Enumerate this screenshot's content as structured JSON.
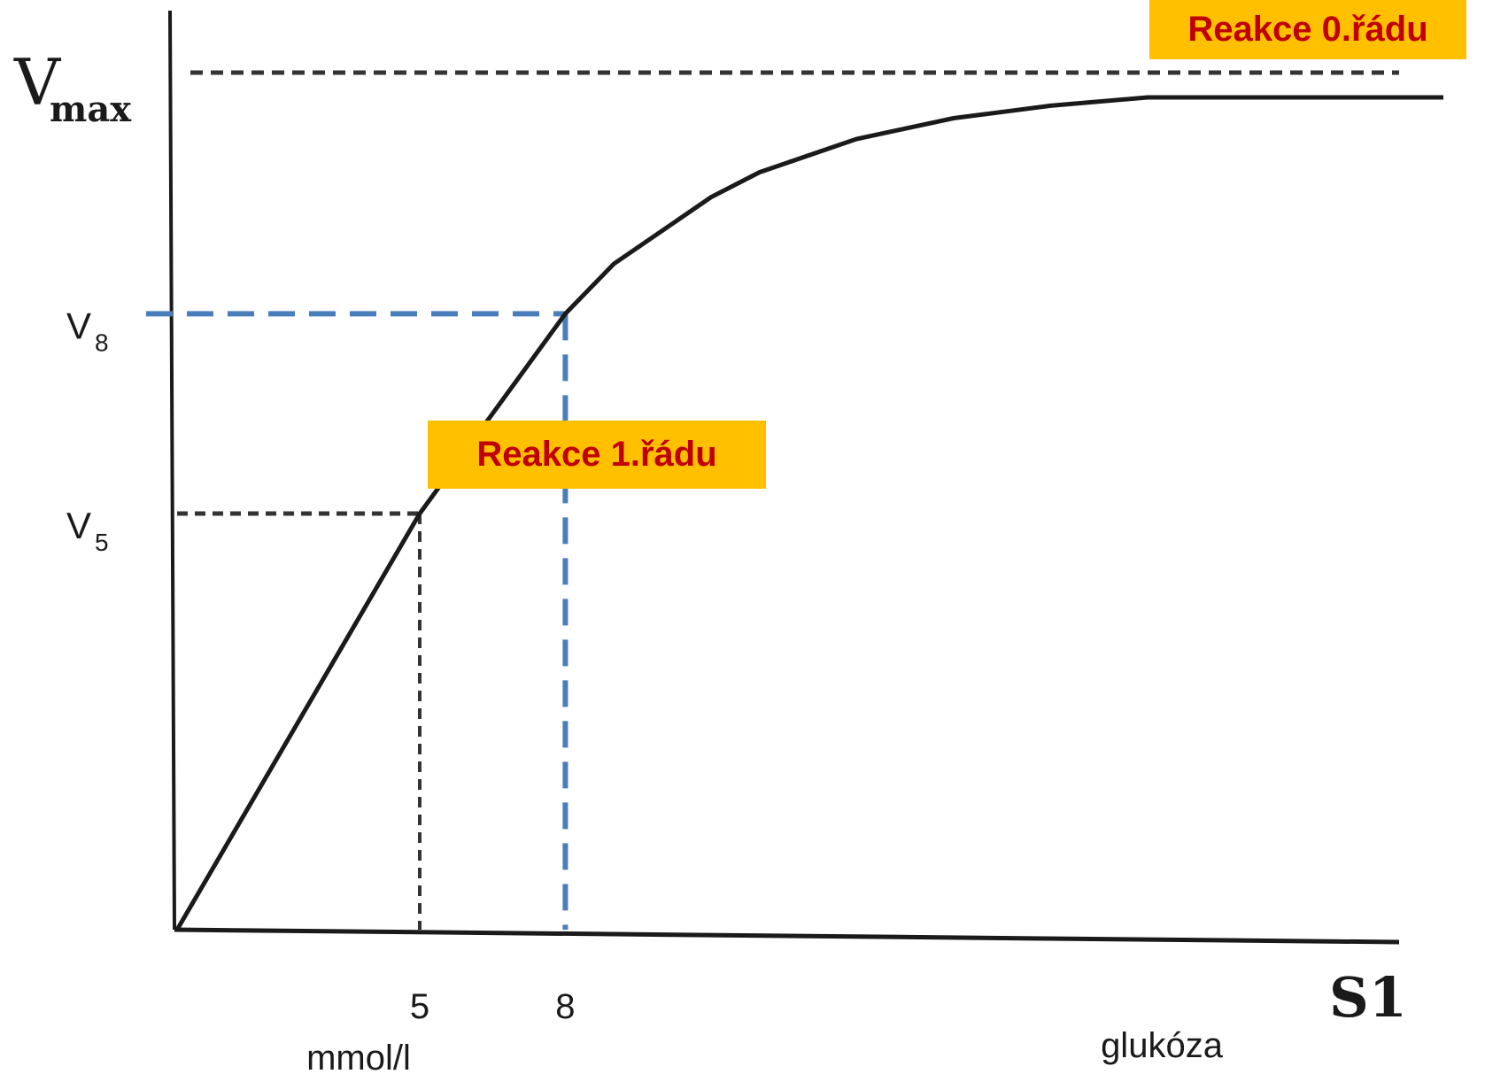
{
  "chart_data": {
    "type": "line",
    "title": "",
    "ylabel": "V",
    "ylabel_sub": "max",
    "xlabel": "glukóza",
    "x_unit": "mmol/l",
    "axis_end_label": "S1",
    "grid": false,
    "y_ticks": [
      {
        "label": "V",
        "sub": "8",
        "value": 0.74
      },
      {
        "label": "V",
        "sub": "5",
        "value": 0.5
      }
    ],
    "x_ticks": [
      {
        "label": "5",
        "value": 5
      },
      {
        "label": "8",
        "value": 8
      }
    ],
    "vmax_ratio": 1.0,
    "xlim": [
      0,
      32
    ],
    "ylim": [
      0,
      1.07
    ],
    "series": [
      {
        "x": [
          0,
          1,
          2,
          3,
          4,
          5,
          6,
          7,
          8,
          9,
          10,
          11,
          12,
          14,
          16,
          18,
          20,
          22,
          24,
          26,
          28,
          30,
          32
        ],
        "values": [
          0,
          0.1,
          0.2,
          0.3,
          0.4,
          0.5,
          0.58,
          0.66,
          0.74,
          0.8,
          0.84,
          0.88,
          0.91,
          0.95,
          0.975,
          0.99,
          1.0,
          1.0,
          1.0,
          1.0,
          1.0,
          1.0,
          1.0
        ]
      }
    ],
    "annotations": {
      "zero_order": "Reakce 0.řádu",
      "first_order": "Reakce 1.řádu"
    },
    "colors": {
      "curve": "#1a1a1a",
      "guide_blue": "#4a7ebb",
      "badge_bg": "#ffc000",
      "badge_text": "#c00000"
    }
  }
}
